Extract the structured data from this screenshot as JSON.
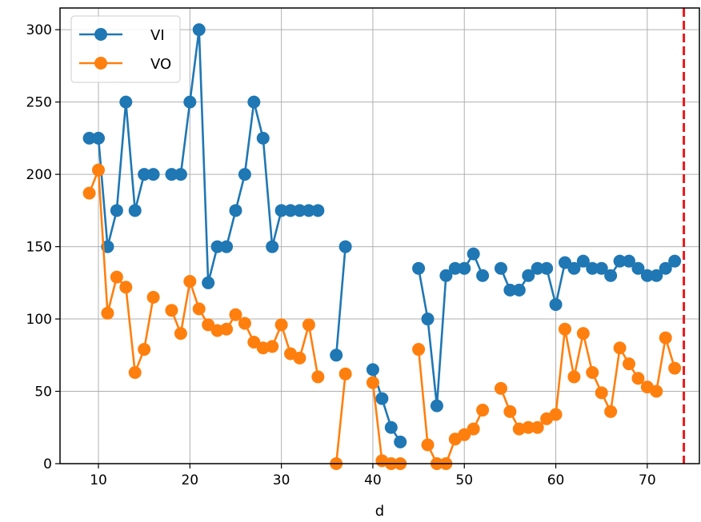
{
  "chart_data": {
    "type": "line",
    "xlabel": "d",
    "ylabel": "",
    "xlim": [
      5.8,
      75.7
    ],
    "ylim": [
      0,
      315
    ],
    "xticks": [
      10,
      20,
      30,
      40,
      50,
      60,
      70
    ],
    "yticks": [
      0,
      50,
      100,
      150,
      200,
      250,
      300
    ],
    "grid": true,
    "legend": "upper-left",
    "vline": {
      "x": 74,
      "color": "#e8191d",
      "style": "dashed"
    },
    "series": [
      {
        "name": "VI",
        "color": "#1f77b4",
        "points": [
          [
            9,
            225
          ],
          [
            10,
            225
          ],
          [
            11,
            150
          ],
          [
            12,
            175
          ],
          [
            13,
            250
          ],
          [
            14,
            175
          ],
          [
            15,
            200
          ],
          [
            16,
            200
          ],
          null,
          [
            18,
            200
          ],
          [
            19,
            200
          ],
          [
            20,
            250
          ],
          [
            21,
            300
          ],
          [
            22,
            125
          ],
          [
            23,
            150
          ],
          [
            24,
            150
          ],
          [
            25,
            175
          ],
          [
            26,
            200
          ],
          [
            27,
            250
          ],
          [
            28,
            225
          ],
          [
            29,
            150
          ],
          [
            30,
            175
          ],
          [
            31,
            175
          ],
          [
            32,
            175
          ],
          [
            33,
            175
          ],
          [
            34,
            175
          ],
          null,
          [
            36,
            75
          ],
          [
            37,
            150
          ],
          null,
          [
            40,
            65
          ],
          [
            41,
            45
          ],
          [
            42,
            25
          ],
          [
            43,
            15
          ],
          null,
          [
            45,
            135
          ],
          [
            46,
            100
          ],
          [
            47,
            40
          ],
          [
            48,
            130
          ],
          [
            49,
            135
          ],
          [
            50,
            135
          ],
          [
            51,
            145
          ],
          [
            52,
            130
          ],
          null,
          [
            54,
            135
          ],
          [
            55,
            120
          ],
          [
            56,
            120
          ],
          [
            57,
            130
          ],
          [
            58,
            135
          ],
          [
            59,
            135
          ],
          [
            60,
            110
          ],
          [
            61,
            139
          ],
          [
            62,
            135
          ],
          [
            63,
            140
          ],
          [
            64,
            135
          ],
          [
            65,
            135
          ],
          [
            66,
            130
          ],
          [
            67,
            140
          ],
          [
            68,
            140
          ],
          [
            69,
            135
          ],
          [
            70,
            130
          ],
          [
            71,
            130
          ],
          [
            72,
            135
          ],
          [
            73,
            140
          ]
        ]
      },
      {
        "name": "VO",
        "color": "#ff7f0e",
        "points": [
          [
            9,
            187
          ],
          [
            10,
            203
          ],
          [
            11,
            104
          ],
          [
            12,
            129
          ],
          [
            13,
            122
          ],
          [
            14,
            63
          ],
          [
            15,
            79
          ],
          [
            16,
            115
          ],
          null,
          [
            18,
            106
          ],
          [
            19,
            90
          ],
          [
            20,
            126
          ],
          [
            21,
            107
          ],
          [
            22,
            96
          ],
          [
            23,
            92
          ],
          [
            24,
            93
          ],
          [
            25,
            103
          ],
          [
            26,
            97
          ],
          [
            27,
            84
          ],
          [
            28,
            80
          ],
          [
            29,
            81
          ],
          [
            30,
            96
          ],
          [
            31,
            76
          ],
          [
            32,
            73
          ],
          [
            33,
            96
          ],
          [
            34,
            60
          ],
          null,
          [
            36,
            0
          ],
          [
            37,
            62
          ],
          null,
          [
            40,
            56
          ],
          [
            41,
            2
          ],
          [
            42,
            0
          ],
          [
            43,
            0
          ],
          null,
          [
            45,
            79
          ],
          [
            46,
            13
          ],
          [
            47,
            0
          ],
          [
            48,
            0
          ],
          [
            49,
            17
          ],
          [
            50,
            20
          ],
          [
            51,
            24
          ],
          [
            52,
            37
          ],
          null,
          [
            54,
            52
          ],
          [
            55,
            36
          ],
          [
            56,
            24
          ],
          [
            57,
            25
          ],
          [
            58,
            25
          ],
          [
            59,
            31
          ],
          [
            60,
            34
          ],
          [
            61,
            93
          ],
          [
            62,
            60
          ],
          [
            63,
            90
          ],
          [
            64,
            63
          ],
          [
            65,
            49
          ],
          [
            66,
            36
          ],
          [
            67,
            80
          ],
          [
            68,
            69
          ],
          [
            69,
            59
          ],
          [
            70,
            53
          ],
          [
            71,
            50
          ],
          [
            72,
            87
          ],
          [
            73,
            66
          ]
        ]
      }
    ]
  }
}
